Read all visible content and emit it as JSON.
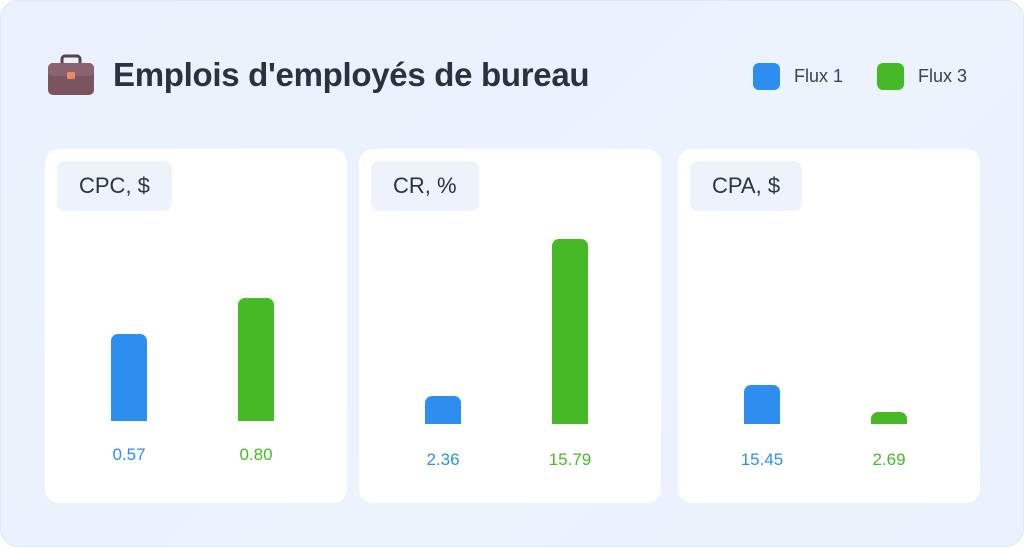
{
  "header": {
    "title": "Emplois d'employés de bureau",
    "icon": "briefcase-icon"
  },
  "legend": [
    {
      "label": "Flux 1",
      "color": "#2d8ef0"
    },
    {
      "label": "Flux 3",
      "color": "#46b926"
    }
  ],
  "chart_data": [
    {
      "type": "bar",
      "title": "CPC, $",
      "categories": [
        "Flux 1",
        "Flux 3"
      ],
      "values": [
        0.57,
        0.8
      ],
      "value_labels": [
        "0.57",
        "0.80"
      ],
      "colors": [
        "#2d8ef0",
        "#46b926"
      ],
      "ylim": [
        0,
        1.24
      ]
    },
    {
      "type": "bar",
      "title": "CR, %",
      "categories": [
        "Flux 1",
        "Flux 3"
      ],
      "values": [
        2.36,
        15.79
      ],
      "value_labels": [
        "2.36",
        "15.79"
      ],
      "colors": [
        "#2d8ef0",
        "#46b926"
      ],
      "ylim": [
        0,
        16.2
      ]
    },
    {
      "type": "bar",
      "title": "CPA, $",
      "categories": [
        "Flux 1",
        "Flux 3"
      ],
      "values": [
        15.45,
        2.69
      ],
      "value_labels": [
        "15.45",
        "2.69"
      ],
      "colors": [
        "#2d8ef0",
        "#46b926"
      ],
      "ylim": [
        0,
        75
      ]
    }
  ]
}
